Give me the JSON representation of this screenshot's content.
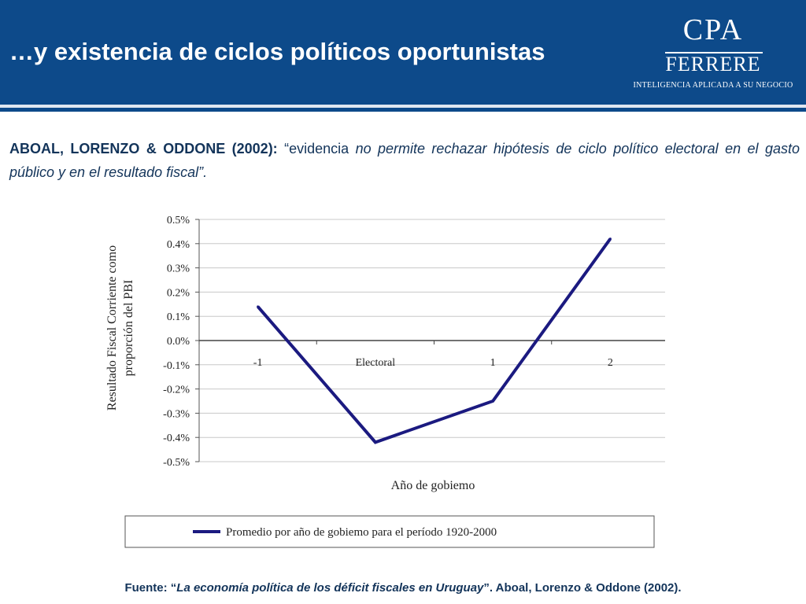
{
  "slide": {
    "title": "…y existencia de ciclos políticos oportunistas"
  },
  "logo": {
    "name_top": "CPA",
    "name_bottom": "FERRERE",
    "tagline": "INTELIGENCIA APLICADA A SU NEGOCIO"
  },
  "intro": {
    "authors": "ABOAL, LORENZO & ODDONE (2002):",
    "quote_open": " “evidencia ",
    "quote_italic": "no permite rechazar hipótesis de ciclo político electoral en el gasto público y en el resultado fiscal”."
  },
  "chart_data": {
    "type": "line",
    "categories": [
      "-1",
      "Electoral",
      "1",
      "2"
    ],
    "series": [
      {
        "name": "Promedio por año de gobiemo para el período 1920-2000",
        "values": [
          0.14,
          -0.42,
          -0.25,
          0.42
        ]
      }
    ],
    "xlabel": "Año de gobiemo",
    "ylabel_lines": [
      "Resultado Fiscal Corriente como",
      "proporción del PBI"
    ],
    "ylim": [
      -0.5,
      0.5
    ],
    "yticks": [
      0.5,
      0.4,
      0.3,
      0.2,
      0.1,
      0.0,
      -0.1,
      -0.2,
      -0.3,
      -0.4,
      -0.5
    ],
    "ytick_labels": [
      "0.5%",
      "0.4%",
      "0.3%",
      "0.2%",
      "0.1%",
      "0.0%",
      "-0.1%",
      "-0.2%",
      "-0.3%",
      "-0.4%",
      "-0.5%"
    ],
    "grid": true,
    "legend_position": "bottom",
    "line_color": "#1b1a80"
  },
  "source": {
    "prefix": "Fuente: “",
    "title_italic": "La economía política de los déficit fiscales en Uruguay",
    "suffix": "”. Aboal, Lorenzo & Oddone (2002)."
  }
}
